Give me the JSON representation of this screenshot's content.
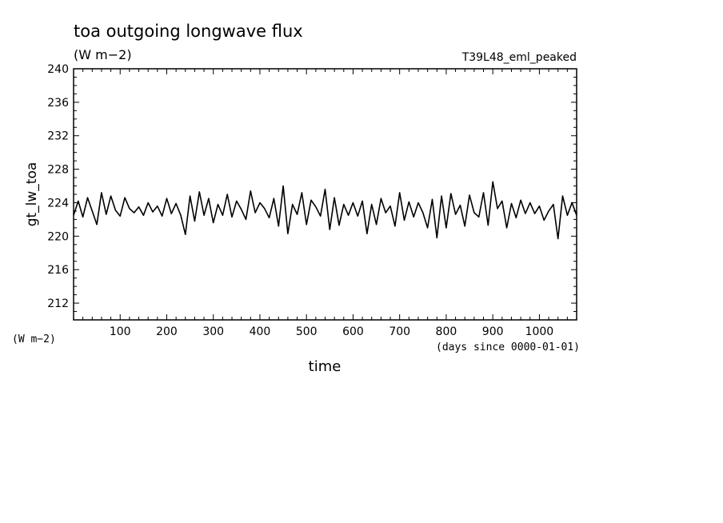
{
  "chart_data": {
    "type": "line",
    "title": "toa outgoing longwave flux",
    "units": "(W m−2)",
    "run_label": "T39L48_eml_peaked",
    "ylabel": "gt_lw_toa",
    "y_units_label": "(W m−2)",
    "xlabel": "time",
    "x_units_label": "(days since 0000-01-01)",
    "xlim": [
      0,
      1080
    ],
    "ylim": [
      210,
      240
    ],
    "x_ticks": [
      100,
      200,
      300,
      400,
      500,
      600,
      700,
      800,
      900,
      1000
    ],
    "y_ticks": [
      212,
      216,
      220,
      224,
      228,
      232,
      236,
      240
    ],
    "grid": false,
    "series": [
      {
        "color": "#000000",
        "x": [
          0,
          10,
          20,
          30,
          40,
          50,
          60,
          70,
          80,
          90,
          100,
          110,
          120,
          130,
          140,
          150,
          160,
          170,
          180,
          190,
          200,
          210,
          220,
          230,
          240,
          250,
          260,
          270,
          280,
          290,
          300,
          310,
          320,
          330,
          340,
          350,
          360,
          370,
          380,
          390,
          400,
          410,
          420,
          430,
          440,
          450,
          460,
          470,
          480,
          490,
          500,
          510,
          520,
          530,
          540,
          550,
          560,
          570,
          580,
          590,
          600,
          610,
          620,
          630,
          640,
          650,
          660,
          670,
          680,
          690,
          700,
          710,
          720,
          730,
          740,
          750,
          760,
          770,
          780,
          790,
          800,
          810,
          820,
          830,
          840,
          850,
          860,
          870,
          880,
          890,
          900,
          910,
          920,
          930,
          940,
          950,
          960,
          970,
          980,
          990,
          1000,
          1010,
          1020,
          1030,
          1040,
          1050,
          1060,
          1070,
          1080
        ],
        "values": [
          222.5,
          224.2,
          222.3,
          224.6,
          223.0,
          221.4,
          225.2,
          222.6,
          224.8,
          223.1,
          222.4,
          224.6,
          223.3,
          222.8,
          223.5,
          222.5,
          224.0,
          222.9,
          223.6,
          222.4,
          224.5,
          222.7,
          223.9,
          222.5,
          220.2,
          224.8,
          221.8,
          225.3,
          222.5,
          224.5,
          221.6,
          223.8,
          222.5,
          225.0,
          222.3,
          224.2,
          223.2,
          222.0,
          225.4,
          222.8,
          224.0,
          223.3,
          222.2,
          224.5,
          221.2,
          226.0,
          220.3,
          223.8,
          222.6,
          225.2,
          221.4,
          224.3,
          223.5,
          222.4,
          225.6,
          220.8,
          224.6,
          221.3,
          223.8,
          222.5,
          224.0,
          222.4,
          224.2,
          220.3,
          223.8,
          221.4,
          224.5,
          222.8,
          223.6,
          221.2,
          225.2,
          221.9,
          224.1,
          222.3,
          224.0,
          222.8,
          221.0,
          224.4,
          219.8,
          224.8,
          221.0,
          225.1,
          222.6,
          223.7,
          221.2,
          224.9,
          222.8,
          222.3,
          225.2,
          221.3,
          226.5,
          223.3,
          224.2,
          221.0,
          223.9,
          222.2,
          224.3,
          222.7,
          224.0,
          222.7,
          223.6,
          221.9,
          223.0,
          223.8,
          219.7,
          224.8,
          222.5,
          224.0,
          222.5
        ]
      }
    ]
  }
}
